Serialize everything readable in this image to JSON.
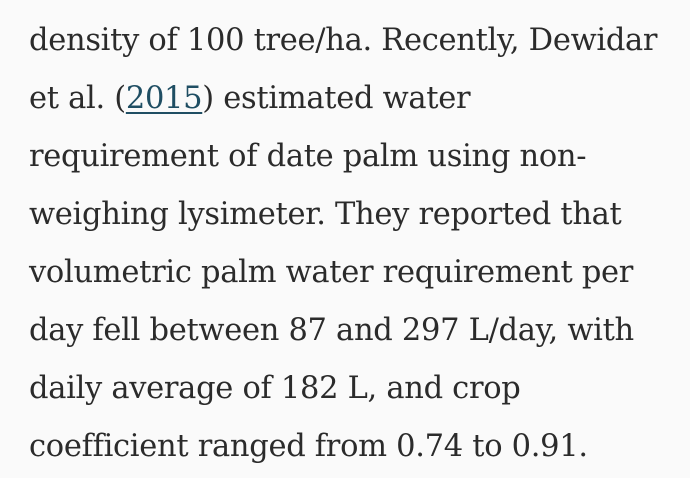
{
  "paragraph": {
    "lines": [
      {
        "text": "density of 100 tree/ha. Recently, Dewidar"
      },
      {
        "before": "et al. (",
        "link": "2015",
        "after": ") estimated water"
      },
      {
        "text": "requirement of date palm using non-"
      },
      {
        "text": "weighing lysimeter. They reported that"
      },
      {
        "text": "volumetric palm water requirement per"
      },
      {
        "text": "day fell between 87 and 297 L/day, with"
      },
      {
        "text": "daily average of 182 L, and crop"
      },
      {
        "text": "coefficient ranged from 0.74 to 0.91."
      }
    ]
  },
  "colors": {
    "text": "#2b2b2b",
    "link": "#1f4e63",
    "background": "#fafafa"
  }
}
